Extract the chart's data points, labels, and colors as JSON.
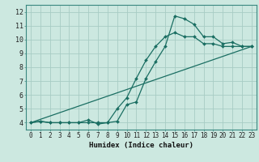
{
  "title": "",
  "xlabel": "Humidex (Indice chaleur)",
  "bg_color": "#cce8e0",
  "grid_color": "#a8ccc4",
  "line_color": "#1a6e62",
  "x_ticks": [
    0,
    1,
    2,
    3,
    4,
    5,
    6,
    7,
    8,
    9,
    10,
    11,
    12,
    13,
    14,
    15,
    16,
    17,
    18,
    19,
    20,
    21,
    22,
    23
  ],
  "y_ticks": [
    4,
    5,
    6,
    7,
    8,
    9,
    10,
    11,
    12
  ],
  "xlim": [
    -0.5,
    23.5
  ],
  "ylim": [
    3.5,
    12.5
  ],
  "line1_x": [
    0,
    1,
    2,
    3,
    4,
    5,
    6,
    7,
    8,
    9,
    10,
    11,
    12,
    13,
    14,
    15,
    16,
    17,
    18,
    19,
    20,
    21,
    22,
    23
  ],
  "line1_y": [
    4.0,
    4.1,
    4.0,
    4.0,
    4.0,
    4.0,
    4.2,
    3.9,
    4.0,
    4.1,
    5.3,
    5.5,
    7.2,
    8.4,
    9.5,
    11.7,
    11.5,
    11.1,
    10.2,
    10.2,
    9.7,
    9.8,
    9.5,
    9.5
  ],
  "line2_x": [
    0,
    1,
    2,
    3,
    4,
    5,
    6,
    7,
    8,
    9,
    10,
    11,
    12,
    13,
    14,
    15,
    16,
    17,
    18,
    19,
    20,
    21,
    22,
    23
  ],
  "line2_y": [
    4.0,
    4.1,
    4.0,
    4.0,
    4.0,
    4.0,
    4.0,
    4.0,
    4.0,
    5.0,
    5.8,
    7.2,
    8.5,
    9.5,
    10.2,
    10.5,
    10.2,
    10.2,
    9.7,
    9.7,
    9.5,
    9.5,
    9.5,
    9.5
  ],
  "line3_x": [
    0,
    23
  ],
  "line3_y": [
    4.0,
    9.5
  ],
  "tick_fontsize": 5.5,
  "xlabel_fontsize": 6.5
}
